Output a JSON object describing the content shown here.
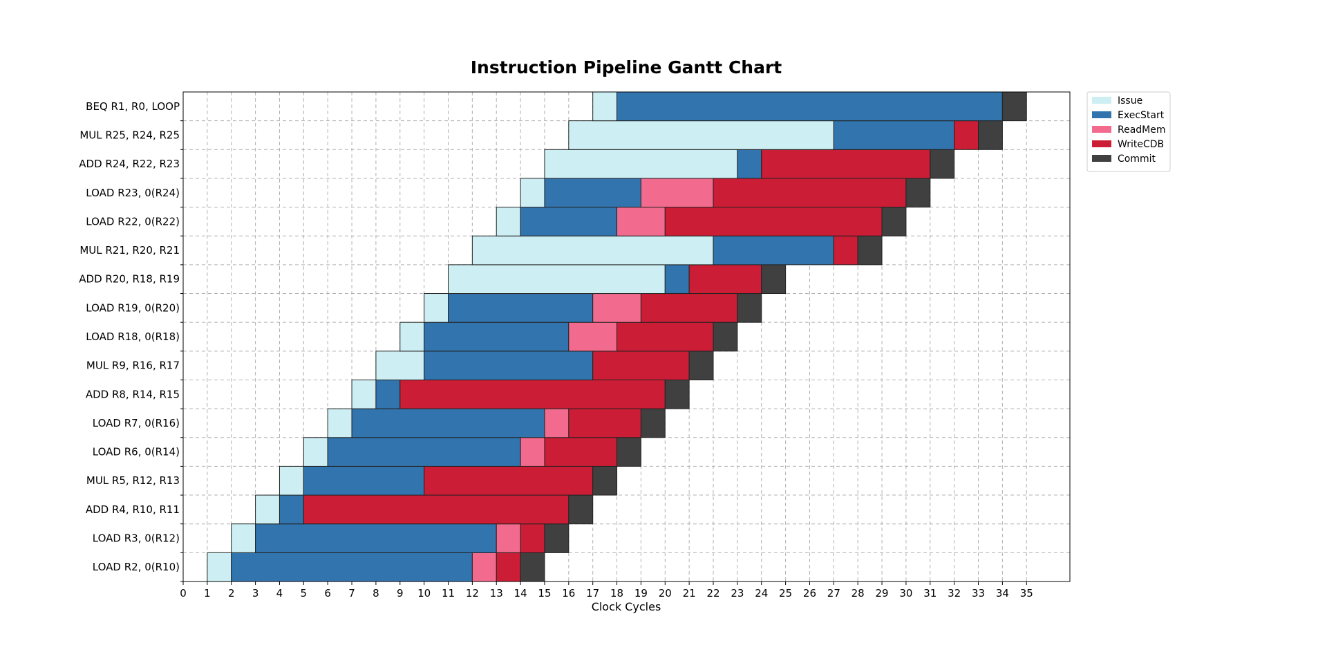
{
  "chart_data": {
    "type": "bar",
    "orientation": "horizontal-gantt",
    "title": "Instruction Pipeline Gantt Chart",
    "xlabel": "Clock Cycles",
    "ylabel": "",
    "xlim": [
      0,
      36.8
    ],
    "xticks": [
      0,
      1,
      2,
      3,
      4,
      5,
      6,
      7,
      8,
      9,
      10,
      11,
      12,
      13,
      14,
      15,
      16,
      17,
      18,
      19,
      20,
      21,
      22,
      23,
      24,
      25,
      26,
      27,
      28,
      29,
      30,
      31,
      32,
      33,
      34,
      35
    ],
    "grid": true,
    "legend_position": "top-right",
    "stages": [
      {
        "name": "Issue",
        "color": "#cdeef3"
      },
      {
        "name": "ExecStart",
        "color": "#3274ad"
      },
      {
        "name": "ReadMem",
        "color": "#f26b8e"
      },
      {
        "name": "WriteCDB",
        "color": "#cb1d35"
      },
      {
        "name": "Commit",
        "color": "#404040"
      }
    ],
    "instructions": [
      {
        "label": "LOAD  R2, 0(R10)",
        "segments": [
          {
            "stage": "Issue",
            "start": 1,
            "end": 2
          },
          {
            "stage": "ExecStart",
            "start": 2,
            "end": 12
          },
          {
            "stage": "ReadMem",
            "start": 12,
            "end": 13
          },
          {
            "stage": "WriteCDB",
            "start": 13,
            "end": 14
          },
          {
            "stage": "Commit",
            "start": 14,
            "end": 15
          }
        ]
      },
      {
        "label": "LOAD  R3, 0(R12)",
        "segments": [
          {
            "stage": "Issue",
            "start": 2,
            "end": 3
          },
          {
            "stage": "ExecStart",
            "start": 3,
            "end": 13
          },
          {
            "stage": "ReadMem",
            "start": 13,
            "end": 14
          },
          {
            "stage": "WriteCDB",
            "start": 14,
            "end": 15
          },
          {
            "stage": "Commit",
            "start": 15,
            "end": 16
          }
        ]
      },
      {
        "label": "ADD   R4, R10, R11",
        "segments": [
          {
            "stage": "Issue",
            "start": 3,
            "end": 4
          },
          {
            "stage": "ExecStart",
            "start": 4,
            "end": 5
          },
          {
            "stage": "WriteCDB",
            "start": 5,
            "end": 16
          },
          {
            "stage": "Commit",
            "start": 16,
            "end": 17
          }
        ]
      },
      {
        "label": "MUL   R5, R12, R13",
        "segments": [
          {
            "stage": "Issue",
            "start": 4,
            "end": 5
          },
          {
            "stage": "ExecStart",
            "start": 5,
            "end": 10
          },
          {
            "stage": "WriteCDB",
            "start": 10,
            "end": 17
          },
          {
            "stage": "Commit",
            "start": 17,
            "end": 18
          }
        ]
      },
      {
        "label": "LOAD  R6, 0(R14)",
        "segments": [
          {
            "stage": "Issue",
            "start": 5,
            "end": 6
          },
          {
            "stage": "ExecStart",
            "start": 6,
            "end": 14
          },
          {
            "stage": "ReadMem",
            "start": 14,
            "end": 15
          },
          {
            "stage": "WriteCDB",
            "start": 15,
            "end": 18
          },
          {
            "stage": "Commit",
            "start": 18,
            "end": 19
          }
        ]
      },
      {
        "label": "LOAD  R7, 0(R16)",
        "segments": [
          {
            "stage": "Issue",
            "start": 6,
            "end": 7
          },
          {
            "stage": "ExecStart",
            "start": 7,
            "end": 15
          },
          {
            "stage": "ReadMem",
            "start": 15,
            "end": 16
          },
          {
            "stage": "WriteCDB",
            "start": 16,
            "end": 19
          },
          {
            "stage": "Commit",
            "start": 19,
            "end": 20
          }
        ]
      },
      {
        "label": "ADD   R8, R14, R15",
        "segments": [
          {
            "stage": "Issue",
            "start": 7,
            "end": 8
          },
          {
            "stage": "ExecStart",
            "start": 8,
            "end": 9
          },
          {
            "stage": "WriteCDB",
            "start": 9,
            "end": 20
          },
          {
            "stage": "Commit",
            "start": 20,
            "end": 21
          }
        ]
      },
      {
        "label": "MUL   R9, R16, R17",
        "segments": [
          {
            "stage": "Issue",
            "start": 8,
            "end": 10
          },
          {
            "stage": "ExecStart",
            "start": 10,
            "end": 17
          },
          {
            "stage": "WriteCDB",
            "start": 17,
            "end": 21
          },
          {
            "stage": "Commit",
            "start": 21,
            "end": 22
          }
        ]
      },
      {
        "label": "LOAD  R18, 0(R18)",
        "segments": [
          {
            "stage": "Issue",
            "start": 9,
            "end": 10
          },
          {
            "stage": "ExecStart",
            "start": 10,
            "end": 16
          },
          {
            "stage": "ReadMem",
            "start": 16,
            "end": 18
          },
          {
            "stage": "WriteCDB",
            "start": 18,
            "end": 22
          },
          {
            "stage": "Commit",
            "start": 22,
            "end": 23
          }
        ]
      },
      {
        "label": "LOAD  R19, 0(R20)",
        "segments": [
          {
            "stage": "Issue",
            "start": 10,
            "end": 11
          },
          {
            "stage": "ExecStart",
            "start": 11,
            "end": 17
          },
          {
            "stage": "ReadMem",
            "start": 17,
            "end": 19
          },
          {
            "stage": "WriteCDB",
            "start": 19,
            "end": 23
          },
          {
            "stage": "Commit",
            "start": 23,
            "end": 24
          }
        ]
      },
      {
        "label": "ADD   R20, R18, R19",
        "segments": [
          {
            "stage": "Issue",
            "start": 11,
            "end": 20
          },
          {
            "stage": "ExecStart",
            "start": 20,
            "end": 21
          },
          {
            "stage": "WriteCDB",
            "start": 21,
            "end": 24
          },
          {
            "stage": "Commit",
            "start": 24,
            "end": 25
          }
        ]
      },
      {
        "label": "MUL   R21, R20, R21",
        "segments": [
          {
            "stage": "Issue",
            "start": 12,
            "end": 22
          },
          {
            "stage": "ExecStart",
            "start": 22,
            "end": 27
          },
          {
            "stage": "WriteCDB",
            "start": 27,
            "end": 28
          },
          {
            "stage": "Commit",
            "start": 28,
            "end": 29
          }
        ]
      },
      {
        "label": "LOAD  R22, 0(R22)",
        "segments": [
          {
            "stage": "Issue",
            "start": 13,
            "end": 14
          },
          {
            "stage": "ExecStart",
            "start": 14,
            "end": 18
          },
          {
            "stage": "ReadMem",
            "start": 18,
            "end": 20
          },
          {
            "stage": "WriteCDB",
            "start": 20,
            "end": 29
          },
          {
            "stage": "Commit",
            "start": 29,
            "end": 30
          }
        ]
      },
      {
        "label": "LOAD  R23, 0(R24)",
        "segments": [
          {
            "stage": "Issue",
            "start": 14,
            "end": 15
          },
          {
            "stage": "ExecStart",
            "start": 15,
            "end": 19
          },
          {
            "stage": "ReadMem",
            "start": 19,
            "end": 22
          },
          {
            "stage": "WriteCDB",
            "start": 22,
            "end": 30
          },
          {
            "stage": "Commit",
            "start": 30,
            "end": 31
          }
        ]
      },
      {
        "label": "ADD   R24, R22, R23",
        "segments": [
          {
            "stage": "Issue",
            "start": 15,
            "end": 23
          },
          {
            "stage": "ExecStart",
            "start": 23,
            "end": 24
          },
          {
            "stage": "WriteCDB",
            "start": 24,
            "end": 31
          },
          {
            "stage": "Commit",
            "start": 31,
            "end": 32
          }
        ]
      },
      {
        "label": "MUL   R25, R24, R25",
        "segments": [
          {
            "stage": "Issue",
            "start": 16,
            "end": 27
          },
          {
            "stage": "ExecStart",
            "start": 27,
            "end": 32
          },
          {
            "stage": "WriteCDB",
            "start": 32,
            "end": 33
          },
          {
            "stage": "Commit",
            "start": 33,
            "end": 34
          }
        ]
      },
      {
        "label": "BEQ   R1, R0, LOOP",
        "segments": [
          {
            "stage": "Issue",
            "start": 17,
            "end": 18
          },
          {
            "stage": "ExecStart",
            "start": 18,
            "end": 34
          },
          {
            "stage": "Commit",
            "start": 34,
            "end": 35
          }
        ]
      }
    ]
  }
}
